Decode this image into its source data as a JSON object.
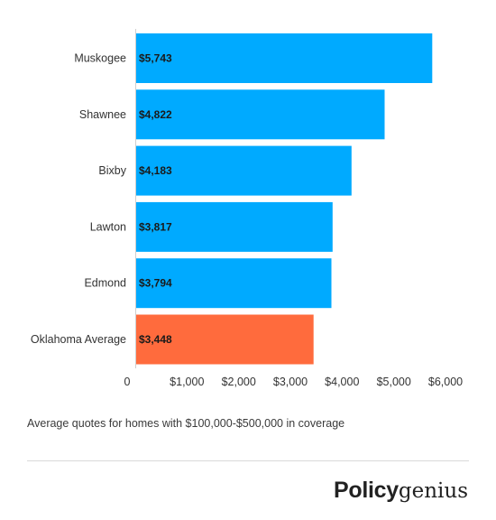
{
  "chart_data": {
    "type": "bar",
    "orientation": "horizontal",
    "categories": [
      "Muskogee",
      "Shawnee",
      "Bixby",
      "Lawton",
      "Edmond",
      "Oklahoma Average"
    ],
    "values": [
      5743,
      4822,
      4183,
      3817,
      3794,
      3448
    ],
    "data_labels": [
      "$5,743",
      "$4,822",
      "$4,183",
      "$3,817",
      "$3,794",
      "$3,448"
    ],
    "bar_colors": [
      "#00aaff",
      "#00aaff",
      "#00aaff",
      "#00aaff",
      "#00aaff",
      "#ff6b3d"
    ],
    "xlim": [
      0,
      6000
    ],
    "x_ticks": [
      0,
      1000,
      2000,
      3000,
      4000,
      5000,
      6000
    ],
    "x_tick_labels": [
      "0",
      "$1,000",
      "$2,000",
      "$3,000",
      "$4,000",
      "$5,000",
      "$6,000"
    ],
    "grid": false,
    "legend": "none"
  },
  "caption": "Average quotes for homes with $100,000-$500,000 in coverage",
  "brand": {
    "bold": "Policy",
    "light": "genius"
  }
}
